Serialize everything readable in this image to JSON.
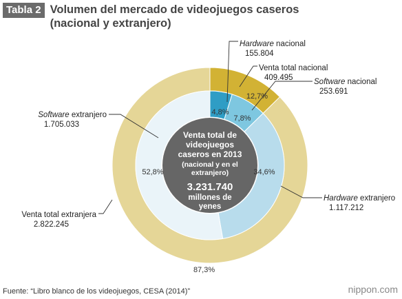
{
  "header": {
    "badge": "Tabla 2",
    "title": "Volumen del mercado de videojuegos caseros (nacional y extranjero)"
  },
  "colors": {
    "outer_nacional": "#d2b234",
    "outer_extranjero": "#e5d697",
    "inner_hw_nacional": "#2f9dc5",
    "inner_sw_nacional": "#7ec7e0",
    "inner_hw_extranjero": "#b8dcec",
    "inner_sw_extranjero": "#eaf4f9",
    "center": "#666666",
    "leader": "#333333"
  },
  "chart_data": {
    "type": "pie",
    "rings": [
      {
        "name": "outer",
        "slices": [
          {
            "label": "Venta total nacional",
            "value": 409495,
            "percent": "12,7%"
          },
          {
            "label": "Venta total extranjera",
            "value": 2822245,
            "percent": "87,3%"
          }
        ]
      },
      {
        "name": "inner",
        "slices": [
          {
            "label": "Hardware nacional",
            "value": 155804,
            "percent": "4,8%"
          },
          {
            "label": "Software nacional",
            "value": 253691,
            "percent": "7,8%"
          },
          {
            "label": "Hardware extranjero",
            "value": 1117212,
            "percent": "34,6%"
          },
          {
            "label": "Software extranjero",
            "value": 1705033,
            "percent": "52,8%"
          }
        ]
      }
    ],
    "total": {
      "lines": [
        "Venta total de",
        "videojuegos",
        "caseros en 2013"
      ],
      "sub_lines": [
        "(nacional y en el",
        "extranjero)"
      ],
      "value": "3.231.740",
      "unit_lines": [
        "millones de",
        "yenes"
      ]
    },
    "callouts": [
      {
        "italic": "Hardware",
        "rest": " nacional",
        "value": "155.804"
      },
      {
        "italic": "",
        "rest": "Venta total nacional",
        "value": "409.495"
      },
      {
        "italic": "Software",
        "rest": " nacional",
        "value": "253.691"
      },
      {
        "italic": "Software",
        "rest": " extranjero",
        "value": "1.705.033"
      },
      {
        "italic": "Hardware",
        "rest": " extranjero",
        "value": "1.117.212"
      },
      {
        "italic": "",
        "rest": "Venta total extranjera",
        "value": "2.822.245"
      }
    ]
  },
  "footer": {
    "source": "Fuente: “Libro blanco de los videojuegos, CESA (2014)”",
    "brand": "nippon.com"
  }
}
